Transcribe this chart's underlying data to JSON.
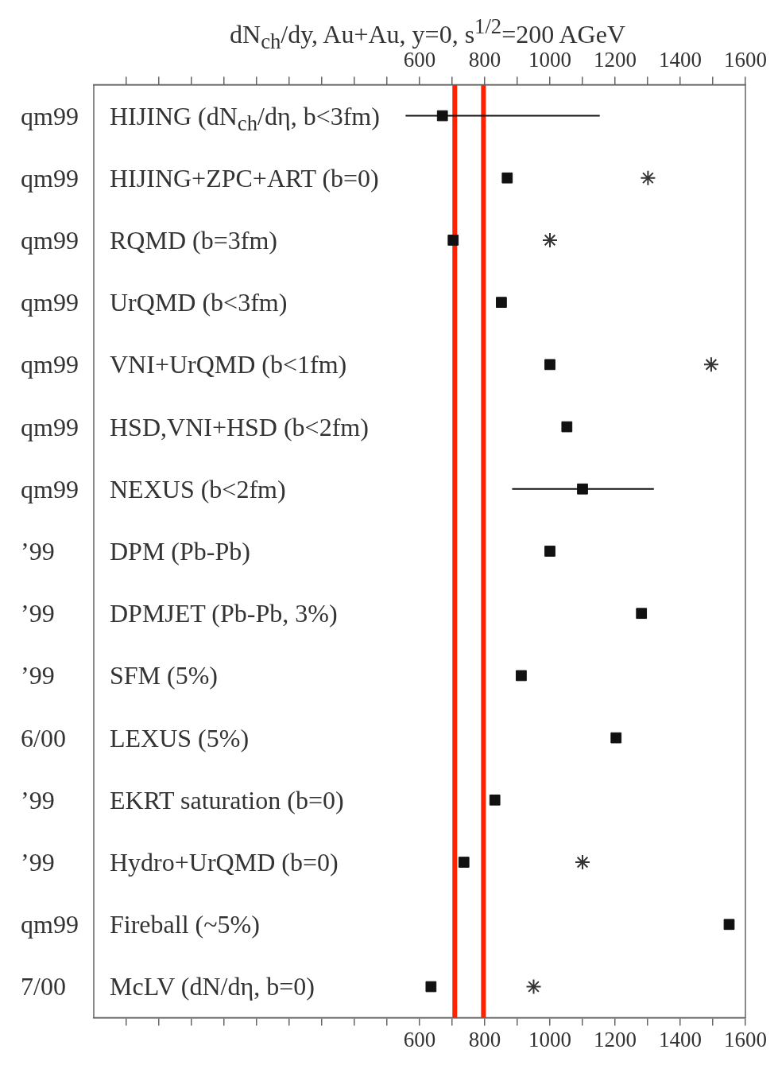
{
  "chart_data": {
    "type": "scatter",
    "orientation": "horizontal",
    "title": "dN$_{ch}$/dy, Au+Au, y=0, s$^{1/2}$=200 AGeV",
    "categories": [
      "HIJING (dN$_{ch}$/dη, b<3fm)",
      "HIJING+ZPC+ART (b=0)",
      "RQMD (b=3fm)",
      "UrQMD (b<3fm)",
      "VNI+UrQMD (b<1fm)",
      "HSD,VNI+HSD (b<2fm)",
      "NEXUS (b<2fm)",
      "DPM (Pb-Pb)",
      "DPMJET (Pb-Pb, 3%)",
      "SFM (5%)",
      "LEXUS (5%)",
      "EKRT saturation (b=0)",
      "Hydro+UrQMD (b=0)",
      "Fireball (~5%)",
      "McLV (dN/dη, b=0)"
    ],
    "series": [
      {
        "color": "#111111",
        "marker": "square",
        "values": [
          670,
          869,
          703,
          851,
          1000,
          1052,
          1100,
          1000,
          1281,
          912,
          1203,
          831,
          736,
          1550,
          635
        ],
        "errors": [
          [
            557,
            1153
          ],
          null,
          null,
          null,
          null,
          null,
          [
            884,
            1319
          ],
          null,
          null,
          null,
          null,
          null,
          null,
          null,
          null
        ]
      },
      {
        "color": "#333333",
        "marker": "cross",
        "values": [
          null,
          1301,
          1000,
          null,
          1495,
          null,
          null,
          null,
          null,
          null,
          null,
          null,
          1100,
          null,
          950
        ]
      }
    ],
    "xlim": [
      -400,
      1600
    ],
    "xticks": [
      {
        "value": -300,
        "label": null
      },
      {
        "value": -200,
        "label": null
      },
      {
        "value": -100,
        "label": null
      },
      {
        "value": 0,
        "label": null
      },
      {
        "value": 100,
        "label": null
      },
      {
        "value": 200,
        "label": null
      },
      {
        "value": 300,
        "label": null
      },
      {
        "value": 400,
        "label": null
      },
      {
        "value": 500,
        "label": null
      },
      600,
      {
        "value": 700,
        "label": null
      },
      800,
      {
        "value": 900,
        "label": null
      },
      1000,
      {
        "value": 1100,
        "label": null
      },
      1200,
      {
        "value": 1300,
        "label": null
      },
      1400,
      {
        "value": 1500,
        "label": null
      },
      1600
    ],
    "x2lim": [
      -400,
      1600
    ],
    "x2ticks": [
      {
        "value": -300,
        "label": null
      },
      {
        "value": -200,
        "label": null
      },
      {
        "value": -100,
        "label": null
      },
      {
        "value": 0,
        "label": null
      },
      {
        "value": 100,
        "label": null
      },
      {
        "value": 200,
        "label": null
      },
      {
        "value": 300,
        "label": null
      },
      {
        "value": 400,
        "label": null
      },
      {
        "value": 500,
        "label": null
      },
      600,
      {
        "value": 700,
        "label": null
      },
      800,
      {
        "value": 900,
        "label": null
      },
      1000,
      {
        "value": 1100,
        "label": null
      },
      1200,
      {
        "value": 1300,
        "label": null
      },
      1400,
      {
        "value": 1500,
        "label": null
      },
      1600
    ],
    "ref_lines": [
      {
        "axis": "x",
        "value": 708,
        "color": "#ff2200"
      },
      {
        "axis": "x",
        "value": 796,
        "color": "#ff2200"
      }
    ],
    "annotations": [
      "qm99",
      "qm99",
      "qm99",
      "qm99",
      "qm99",
      "qm99",
      "qm99",
      "’99",
      "’99",
      "’99",
      "6/00",
      "’99",
      "’99",
      "qm99",
      "7/00"
    ],
    "grid": false,
    "legend": false
  }
}
